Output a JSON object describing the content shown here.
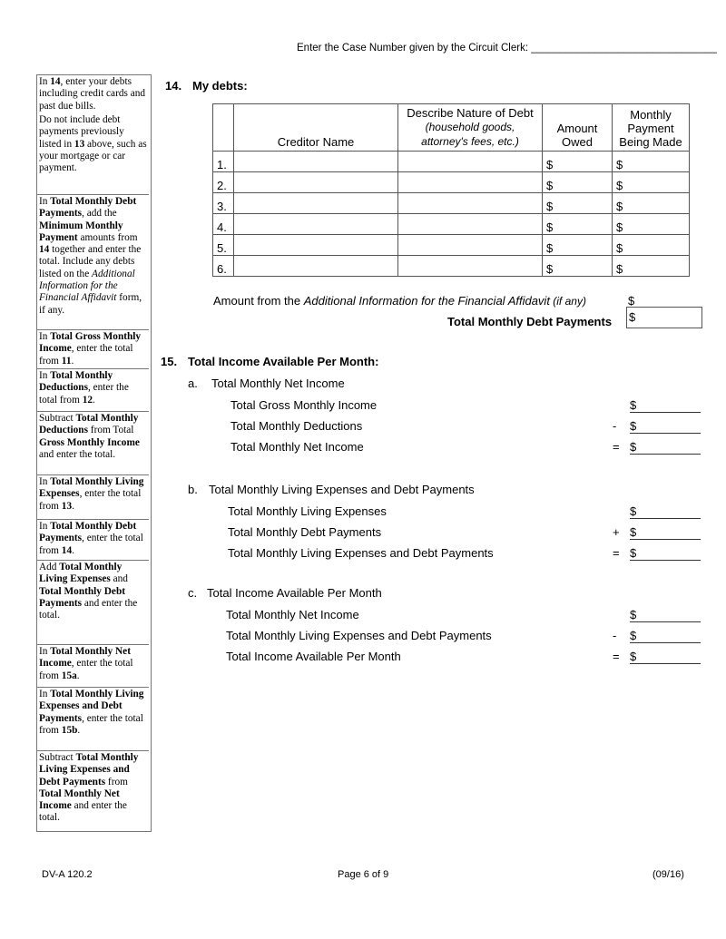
{
  "header": {
    "case_number_label": "Enter the Case Number given by the Circuit Clerk: ________________________________"
  },
  "sidebar": [
    [
      {
        "t": "In "
      },
      {
        "t": "14",
        "b": 1
      },
      {
        "t": ", enter your debts including credit cards and past due bills."
      }
    ],
    [
      {
        "t": "Do not include debt payments previously listed in "
      },
      {
        "t": "13",
        "b": 1
      },
      {
        "t": " above, such as your mortgage or car payment."
      }
    ],
    [
      {
        "t": "In "
      },
      {
        "t": "Total Monthly Debt Payments",
        "b": 1
      },
      {
        "t": ", add the "
      },
      {
        "t": "Minimum Monthly Payment",
        "b": 1
      },
      {
        "t": " amounts from "
      },
      {
        "t": "14",
        "b": 1
      },
      {
        "t": " together and enter the total. Include any debts listed on the "
      },
      {
        "t": "Additional Information for the Financial Affidavit",
        "i": 1
      },
      {
        "t": " form, if any."
      }
    ],
    [
      {
        "t": "In "
      },
      {
        "t": "Total Gross Monthly Income",
        "b": 1
      },
      {
        "t": ", enter the total from "
      },
      {
        "t": "11",
        "b": 1
      },
      {
        "t": "."
      }
    ],
    [
      {
        "t": "In "
      },
      {
        "t": "Total Monthly Deductions",
        "b": 1
      },
      {
        "t": ", enter the total from "
      },
      {
        "t": "12",
        "b": 1
      },
      {
        "t": "."
      }
    ],
    [
      {
        "t": "Subtract "
      },
      {
        "t": "Total Monthly Deductions",
        "b": 1
      },
      {
        "t": " from Total "
      },
      {
        "t": "Gross Monthly Income",
        "b": 1
      },
      {
        "t": " and enter the total."
      }
    ],
    [
      {
        "t": "In "
      },
      {
        "t": "Total Monthly Living Expenses",
        "b": 1
      },
      {
        "t": ", enter the total from "
      },
      {
        "t": "13",
        "b": 1
      },
      {
        "t": "."
      }
    ],
    [
      {
        "t": "In "
      },
      {
        "t": "Total Monthly Debt Payments",
        "b": 1
      },
      {
        "t": ", enter the total from "
      },
      {
        "t": "14",
        "b": 1
      },
      {
        "t": "."
      }
    ],
    [
      {
        "t": "Add "
      },
      {
        "t": "Total Monthly Living Expenses",
        "b": 1
      },
      {
        "t": " and "
      },
      {
        "t": "Total Monthly Debt Payments",
        "b": 1
      },
      {
        "t": " and enter the total."
      }
    ],
    [
      {
        "t": "In "
      },
      {
        "t": "Total Monthly Net Income",
        "b": 1
      },
      {
        "t": ", enter the total from "
      },
      {
        "t": "15a",
        "b": 1
      },
      {
        "t": "."
      }
    ],
    [
      {
        "t": "In "
      },
      {
        "t": "Total Monthly Living Expenses and Debt Payments",
        "b": 1
      },
      {
        "t": ", enter the total from "
      },
      {
        "t": "15b",
        "b": 1
      },
      {
        "t": "."
      }
    ],
    [
      {
        "t": "Subtract "
      },
      {
        "t": "Total Monthly Living Expenses and Debt Payments",
        "b": 1
      },
      {
        "t": " from "
      },
      {
        "t": "Total Monthly Net Income",
        "b": 1
      },
      {
        "t": " and enter the total."
      }
    ]
  ],
  "s14": {
    "number": "14.",
    "title": "My debts:",
    "headers": {
      "creditor": "Creditor Name",
      "nature": "Describe Nature of Debt",
      "nature_sub": "(household goods, attorney's fees, etc.)",
      "owed": "Amount Owed",
      "payment": "Monthly Payment Being Made"
    },
    "rows": [
      "1.",
      "2.",
      "3.",
      "4.",
      "5.",
      "6."
    ],
    "dollar": "$",
    "additional_pre": "Amount from the ",
    "additional_italic": "Additional Information for the Financial Affidavit",
    "additional_post": " (if any)",
    "total_label": "Total Monthly Debt Payments"
  },
  "s15": {
    "number": "15.",
    "title": "Total Income Available Per Month:",
    "a": {
      "letter": "a.",
      "title": "Total Monthly Net Income",
      "lines": [
        {
          "label": "Total Gross Monthly Income",
          "op": ""
        },
        {
          "label": "Total Monthly Deductions",
          "op": "-"
        },
        {
          "label": "Total Monthly Net Income",
          "op": "="
        }
      ]
    },
    "b": {
      "letter": "b.",
      "title": "Total Monthly Living Expenses and Debt Payments",
      "lines": [
        {
          "label": "Total Monthly Living Expenses",
          "op": ""
        },
        {
          "label": "Total Monthly Debt Payments",
          "op": "+"
        },
        {
          "label": "Total Monthly Living Expenses and Debt Payments",
          "op": "="
        }
      ]
    },
    "c": {
      "letter": "c.",
      "title": "Total Income Available Per Month",
      "lines": [
        {
          "label": "Total Monthly Net Income",
          "op": ""
        },
        {
          "label": "Total Monthly Living Expenses and Debt Payments",
          "op": "-"
        },
        {
          "label": "Total Income Available Per Month",
          "op": "="
        }
      ]
    }
  },
  "footer": {
    "form_id": "DV-A 120.2",
    "page": "Page 6 of 9",
    "revision": "(09/16)"
  }
}
